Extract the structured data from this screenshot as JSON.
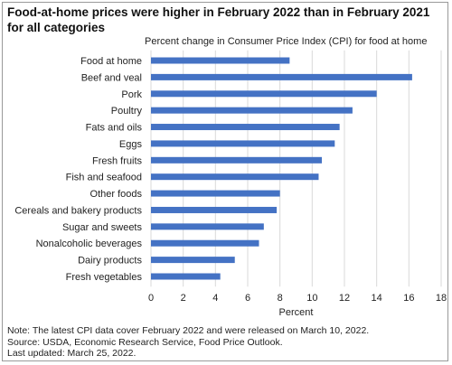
{
  "title": "Food-at-home prices were higher in February 2022 than in February 2021 for all categories",
  "chart_data": {
    "type": "bar",
    "orientation": "horizontal",
    "subtitle": "Percent change in Consumer Price Index (CPI) for food at home",
    "xlabel": "Percent",
    "ylabel": "",
    "xlim": [
      0,
      18
    ],
    "xticks": [
      0,
      2,
      4,
      6,
      8,
      10,
      12,
      14,
      16,
      18
    ],
    "grid": "vertical",
    "bar_color": "#4472c4",
    "categories": [
      "Food at home",
      "Beef and veal",
      "Pork",
      "Poultry",
      "Fats and oils",
      "Eggs",
      "Fresh fruits",
      "Fish and seafood",
      "Other foods",
      "Cereals and bakery products",
      "Sugar and sweets",
      "Nonalcoholic beverages",
      "Dairy products",
      "Fresh vegetables"
    ],
    "values": [
      8.6,
      16.2,
      14.0,
      12.5,
      11.7,
      11.4,
      10.6,
      10.4,
      8.0,
      7.8,
      7.0,
      6.7,
      5.2,
      4.3
    ]
  },
  "notes": [
    "Note: The latest CPI data cover February 2022 and were released on March 10, 2022.",
    "Source: USDA, Economic Research Service, Food Price Outlook.",
    "Last updated: March 25, 2022."
  ]
}
